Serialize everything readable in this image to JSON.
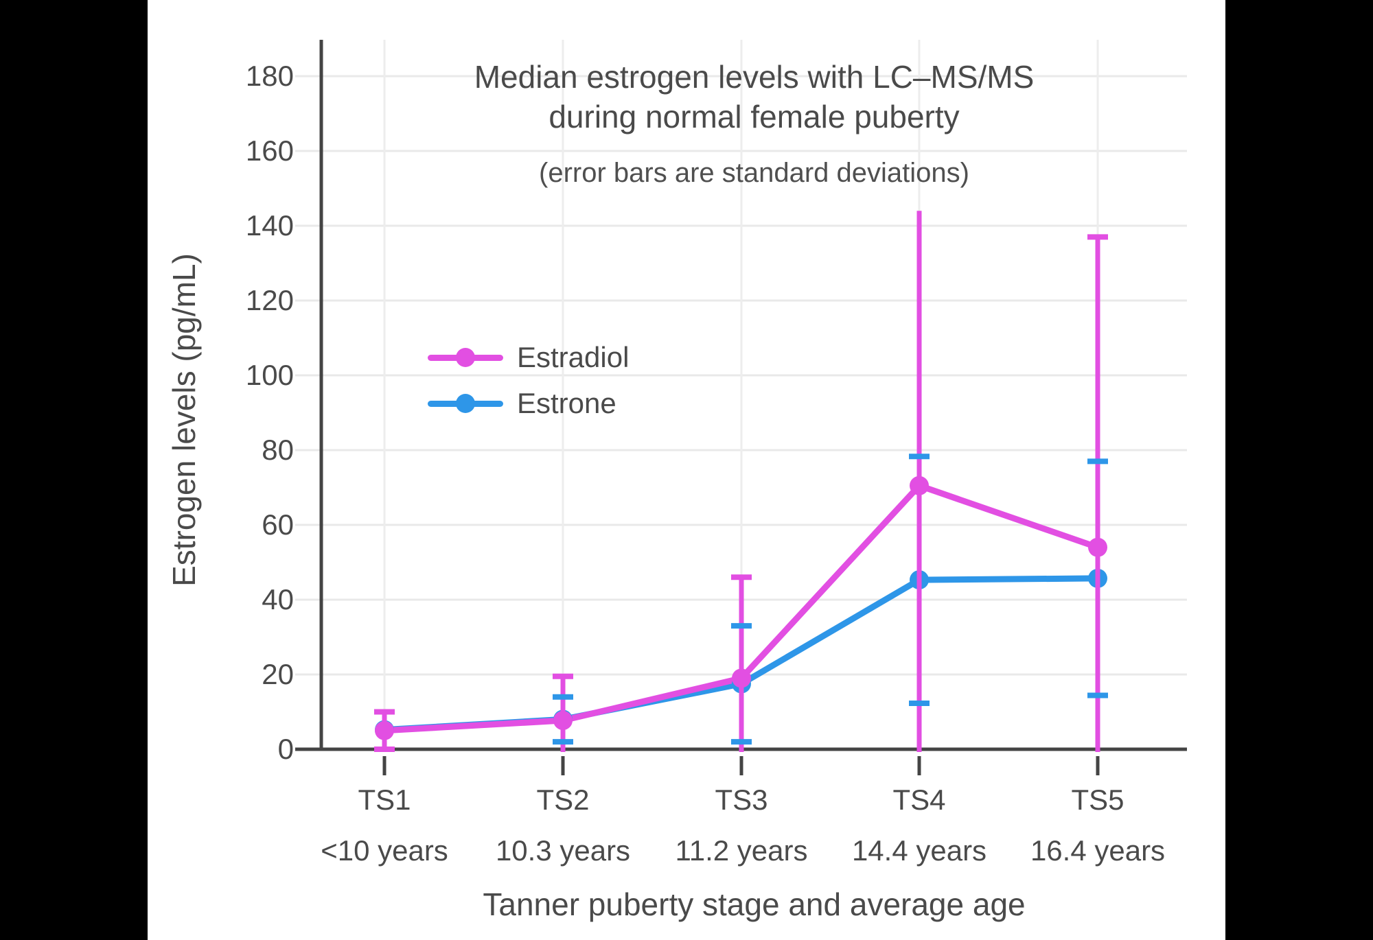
{
  "window": {
    "letterbox_color": "#000000",
    "panel_color": "#ffffff"
  },
  "chart_data": {
    "type": "line",
    "title_line1": "Median estrogen levels with LC–MS/MS",
    "title_line2": "during normal female puberty",
    "subtitle": "(error bars are standard deviations)",
    "xlabel": "Tanner puberty stage and average age",
    "ylabel": "Estrogen levels (pg/mL)",
    "units": "pg/mL",
    "categories": [
      "TS1",
      "TS2",
      "TS3",
      "TS4",
      "TS5"
    ],
    "category_ages": [
      "<10 years",
      "10.3 years",
      "11.2 years",
      "14.4 years",
      "16.4 years"
    ],
    "y_ticks": [
      0,
      20,
      40,
      60,
      80,
      100,
      120,
      140,
      160,
      180
    ],
    "ylim": [
      0,
      190
    ],
    "grid": true,
    "error_bars_clipped_at_zero": true,
    "legend_position": "inside-upper-left",
    "series": [
      {
        "name": "Estradiol",
        "color": "#e24fe2",
        "values": [
          5,
          7.7,
          19,
          70.5,
          54
        ],
        "sd": [
          5,
          11.8,
          27,
          73.5,
          83
        ],
        "upper_error": [
          10,
          19.5,
          46,
          144,
          137
        ],
        "upper_cap_visible": [
          true,
          true,
          true,
          false,
          true
        ]
      },
      {
        "name": "Estrone",
        "color": "#2e96e8",
        "values": [
          5.2,
          8,
          17.5,
          45.3,
          45.7
        ],
        "sd": [
          null,
          6,
          15.5,
          33,
          31.3
        ],
        "upper_error": [
          null,
          14,
          33,
          78.3,
          77
        ],
        "upper_cap_visible": [
          false,
          true,
          true,
          true,
          true
        ]
      }
    ],
    "colors": {
      "axis": "#444444",
      "grid_h": "#e9e9e9",
      "grid_v": "#ededed",
      "text": "#4a4a4a"
    }
  }
}
